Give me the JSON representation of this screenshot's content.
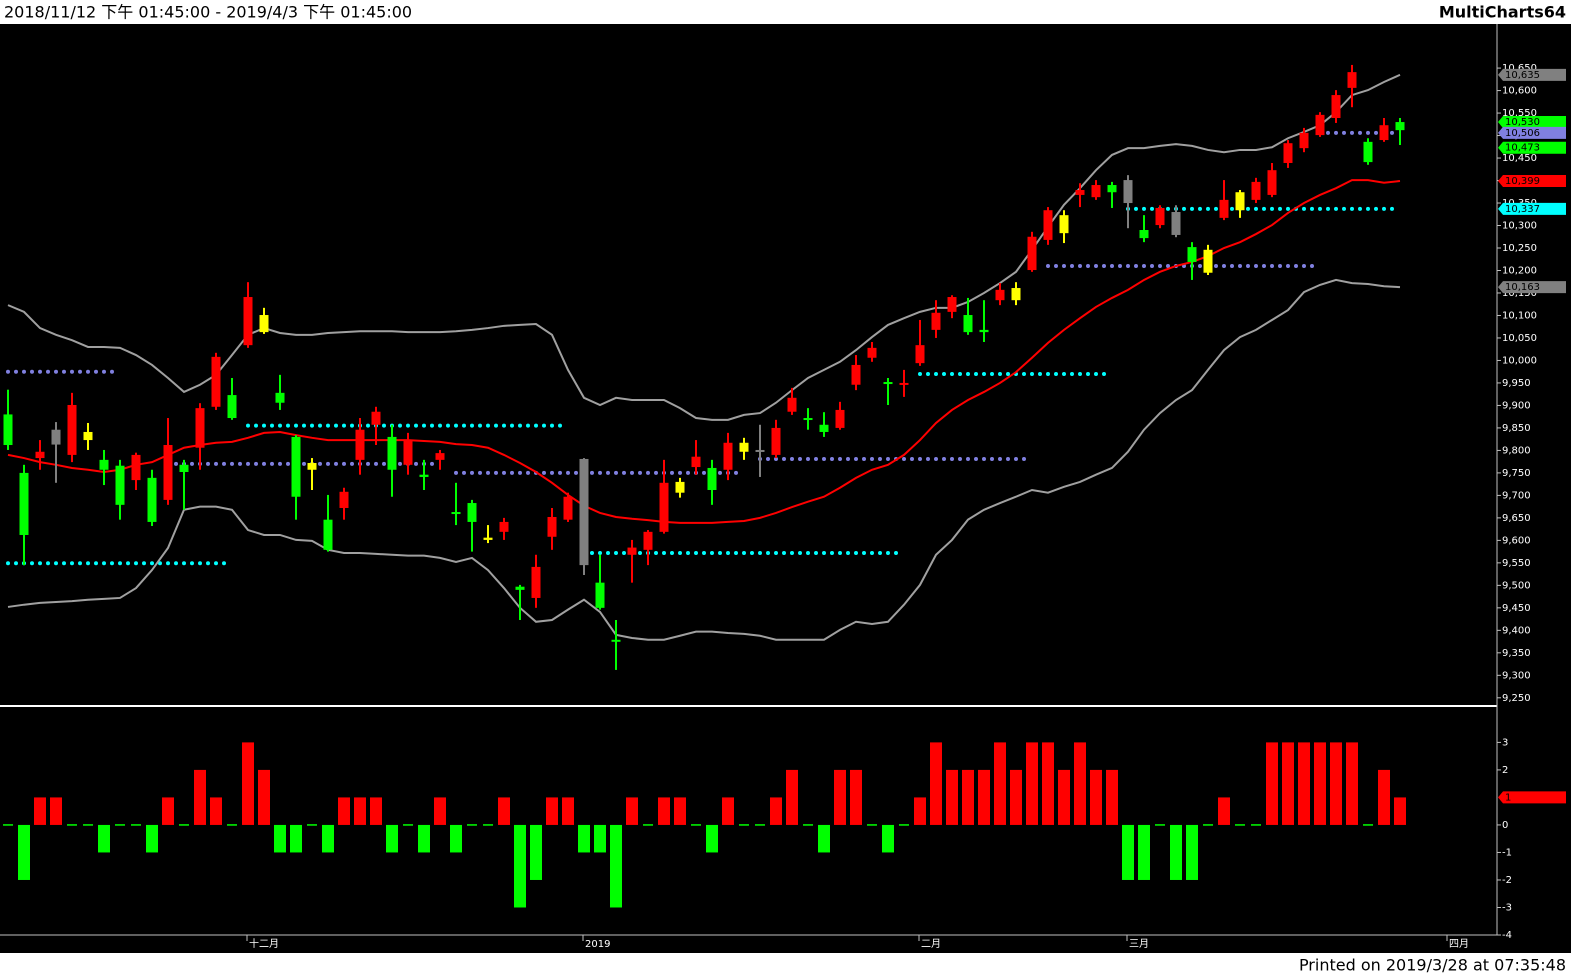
{
  "header": {
    "range": "2018/11/12 下午 01:45:00 - 2019/4/3 下午 01:45:00",
    "brand": "MultiCharts64"
  },
  "footer": "Printed on 2019/3/28 at 07:35:48",
  "chart_data": [
    {
      "type": "candlestick",
      "ylim": [
        9234,
        10748
      ],
      "yticks": [
        {
          "value": 9250,
          "label": "9,250"
        },
        {
          "value": 9300,
          "label": "9,300"
        },
        {
          "value": 9350,
          "label": "9,350"
        },
        {
          "value": 9400,
          "label": "9,400"
        },
        {
          "value": 9450,
          "label": "9,450"
        },
        {
          "value": 9500,
          "label": "9,500"
        },
        {
          "value": 9550,
          "label": "9,550"
        },
        {
          "value": 9600,
          "label": "9,600"
        },
        {
          "value": 9650,
          "label": "9,650"
        },
        {
          "value": 9700,
          "label": "9,700"
        },
        {
          "value": 9750,
          "label": "9,750"
        },
        {
          "value": 9800,
          "label": "9,800"
        },
        {
          "value": 9850,
          "label": "9,850"
        },
        {
          "value": 9900,
          "label": "9,900"
        },
        {
          "value": 9950,
          "label": "9,950"
        },
        {
          "value": 10000,
          "label": "10,000"
        },
        {
          "value": 10050,
          "label": "10,050"
        },
        {
          "value": 10100,
          "label": "10,100"
        },
        {
          "value": 10150,
          "label": "10,150"
        },
        {
          "value": 10200,
          "label": "10,200"
        },
        {
          "value": 10250,
          "label": "10,250"
        },
        {
          "value": 10300,
          "label": "10,300"
        },
        {
          "value": 10350,
          "label": "10,350"
        },
        {
          "value": 10400,
          "label": "10,400"
        },
        {
          "value": 10450,
          "label": "10,450"
        },
        {
          "value": 10500,
          "label": "10,500"
        },
        {
          "value": 10550,
          "label": "10,550"
        },
        {
          "value": 10600,
          "label": "10,600"
        },
        {
          "value": 10650,
          "label": "10,650"
        }
      ],
      "xticks": [
        {
          "value": 15,
          "label": "十二月"
        },
        {
          "value": 36,
          "label": "2019"
        },
        {
          "value": 57,
          "label": "二月"
        },
        {
          "value": 70,
          "label": "三月"
        },
        {
          "value": 90,
          "label": "四月"
        }
      ],
      "candles": {
        "open": [
          9880,
          9750,
          9783,
          9813,
          9790,
          9823,
          9779,
          9766,
          9734,
          9739,
          9690,
          9768,
          9806,
          9897,
          9923,
          10034,
          10063,
          9928,
          9830,
          9757,
          9646,
          9672,
          9779,
          9857,
          9830,
          9768,
          9746,
          9779,
          9663,
          9683,
          9601,
          9619,
          9497,
          9472,
          9608,
          9646,
          9545,
          9506,
          9379,
          9568,
          9579,
          9619,
          9706,
          9763,
          9761,
          9757,
          9797,
          9797,
          9790,
          9886,
          9872,
          9857,
          9850,
          9946,
          10006,
          9952,
          9946,
          9994,
          10068,
          10108,
          10101,
          10068,
          10134,
          10134,
          10201,
          10268,
          10283,
          10368,
          10363,
          10390,
          10350,
          10290,
          10301,
          10279,
          10252,
          10195,
          10317,
          10334,
          10357,
          10368,
          10439,
          10472,
          10501,
          10539,
          10606,
          10486,
          10490,
          10530
        ],
        "high": [
          9935,
          9768,
          9823,
          9863,
          9928,
          9861,
          9801,
          9779,
          9795,
          9757,
          9872,
          9779,
          9905,
          10017,
          9961,
          10174,
          10117,
          9968,
          9834,
          9783,
          9701,
          9717,
          9872,
          9897,
          9857,
          9839,
          9779,
          9801,
          9728,
          9690,
          9634,
          9650,
          9501,
          9568,
          9672,
          9706,
          9783,
          9568,
          9423,
          9601,
          9623,
          9779,
          9739,
          9823,
          9779,
          9839,
          9828,
          9857,
          9868,
          9939,
          9894,
          9885,
          9908,
          10012,
          10041,
          9961,
          9979,
          10090,
          10134,
          10145,
          10139,
          10134,
          10172,
          10174,
          10286,
          10341,
          10334,
          10394,
          10401,
          10397,
          10412,
          10323,
          10345,
          10345,
          10263,
          10257,
          10401,
          10379,
          10406,
          10439,
          10490,
          10517,
          10552,
          10601,
          10657,
          10494,
          10539,
          10539
        ],
        "low": [
          9801,
          9545,
          9757,
          9728,
          9774,
          9801,
          9723,
          9646,
          9712,
          9632,
          9679,
          9668,
          9757,
          9890,
          9868,
          10028,
          10059,
          9890,
          9646,
          9712,
          9575,
          9646,
          9746,
          9812,
          9697,
          9746,
          9712,
          9757,
          9634,
          9575,
          9594,
          9601,
          9423,
          9450,
          9579,
          9641,
          9523,
          9446,
          9312,
          9506,
          9545,
          9615,
          9695,
          9746,
          9679,
          9734,
          9779,
          9741,
          9783,
          9879,
          9846,
          9830,
          9846,
          9934,
          9997,
          9901,
          9919,
          9988,
          10050,
          10094,
          10057,
          10041,
          10123,
          10123,
          10197,
          10257,
          10261,
          10341,
          10357,
          10339,
          10294,
          10263,
          10294,
          10274,
          10179,
          10190,
          10312,
          10317,
          10350,
          10363,
          10428,
          10463,
          10497,
          10528,
          10563,
          10435,
          10486,
          10479
        ],
        "close": [
          9812,
          9612,
          9797,
          9846,
          9901,
          9841,
          9757,
          9679,
          9790,
          9641,
          9812,
          9752,
          9894,
          10008,
          9872,
          10141,
          10101,
          9906,
          9697,
          9772,
          9579,
          9708,
          9846,
          9886,
          9757,
          9823,
          9741,
          9794,
          9659,
          9641,
          9606,
          9641,
          9490,
          9541,
          9652,
          9697,
          9781,
          9450,
          9375,
          9584,
          9619,
          9728,
          9730,
          9786,
          9712,
          9817,
          9817,
          9801,
          9850,
          9917,
          9868,
          9841,
          9890,
          9990,
          10028,
          9948,
          9950,
          10034,
          10106,
          10141,
          10063,
          10063,
          10157,
          10161,
          10275,
          10334,
          10323,
          10379,
          10390,
          10374,
          10401,
          10272,
          10339,
          10330,
          10219,
          10246,
          10357,
          10374,
          10397,
          10423,
          10483,
          10506,
          10546,
          10590,
          10641,
          10441,
          10523,
          10512
        ],
        "colors": [
          "#00ff00",
          "#00ff00",
          "#ff0000",
          "#808080",
          "#ff0000",
          "#ffff00",
          "#00ff00",
          "#00ff00",
          "#ff0000",
          "#00ff00",
          "#ff0000",
          "#00ff00",
          "#ff0000",
          "#ff0000",
          "#00ff00",
          "#ff0000",
          "#ffff00",
          "#00ff00",
          "#00ff00",
          "#ffff00",
          "#00ff00",
          "#ff0000",
          "#ff0000",
          "#ff0000",
          "#00ff00",
          "#ff0000",
          "#00ff00",
          "#ff0000",
          "#00ff00",
          "#00ff00",
          "#ffff00",
          "#ff0000",
          "#00ff00",
          "#ff0000",
          "#ff0000",
          "#ff0000",
          "#808080",
          "#00ff00",
          "#00ff00",
          "#ff0000",
          "#ff0000",
          "#ff0000",
          "#ffff00",
          "#ff0000",
          "#00ff00",
          "#ff0000",
          "#ffff00",
          "#808080",
          "#ff0000",
          "#ff0000",
          "#00ff00",
          "#00ff00",
          "#ff0000",
          "#ff0000",
          "#ff0000",
          "#00ff00",
          "#ff0000",
          "#ff0000",
          "#ff0000",
          "#ff0000",
          "#00ff00",
          "#00ff00",
          "#ff0000",
          "#ffff00",
          "#ff0000",
          "#ff0000",
          "#ffff00",
          "#ff0000",
          "#ff0000",
          "#00ff00",
          "#808080",
          "#00ff00",
          "#ff0000",
          "#808080",
          "#00ff00",
          "#ffff00",
          "#ff0000",
          "#ffff00",
          "#ff0000",
          "#ff0000",
          "#ff0000",
          "#ff0000",
          "#ff0000",
          "#ff0000",
          "#ff0000",
          "#00ff00",
          "#ff0000",
          "#00ff00"
        ]
      },
      "bands": [
        {
          "color": "#a0a0a0",
          "values": [
            10123,
            10108,
            10072,
            10057,
            10045,
            10030,
            10030,
            10028,
            10012,
            9990,
            9961,
            9930,
            9946,
            9968,
            10012,
            10057,
            10072,
            10061,
            10057,
            10057,
            10061,
            10063,
            10065,
            10065,
            10065,
            10063,
            10063,
            10063,
            10065,
            10068,
            10072,
            10077,
            10079,
            10081,
            10057,
            9979,
            9917,
            9901,
            9917,
            9912,
            9912,
            9912,
            9894,
            9872,
            9868,
            9868,
            9879,
            9883,
            9906,
            9934,
            9961,
            9979,
            9997,
            10023,
            10052,
            10079,
            10094,
            10108,
            10117,
            10117,
            10130,
            10150,
            10172,
            10197,
            10246,
            10297,
            10346,
            10383,
            10423,
            10457,
            10472,
            10472,
            10477,
            10481,
            10477,
            10468,
            10463,
            10468,
            10468,
            10474,
            10494,
            10508,
            10523,
            10552,
            10590,
            10601,
            10619,
            10635
          ]
        },
        {
          "color": "#ff0000",
          "values": [
            9790,
            9783,
            9774,
            9768,
            9761,
            9757,
            9752,
            9757,
            9768,
            9774,
            9790,
            9806,
            9812,
            9817,
            9819,
            9828,
            9839,
            9841,
            9834,
            9828,
            9823,
            9823,
            9823,
            9823,
            9823,
            9823,
            9821,
            9819,
            9814,
            9812,
            9806,
            9790,
            9772,
            9752,
            9728,
            9701,
            9677,
            9661,
            9652,
            9648,
            9645,
            9641,
            9639,
            9639,
            9639,
            9641,
            9643,
            9650,
            9661,
            9674,
            9686,
            9697,
            9717,
            9739,
            9757,
            9768,
            9790,
            9823,
            9861,
            9890,
            9912,
            9930,
            9950,
            9974,
            10006,
            10039,
            10068,
            10094,
            10119,
            10139,
            10157,
            10179,
            10197,
            10210,
            10219,
            10232,
            10250,
            10263,
            10281,
            10301,
            10328,
            10350,
            10368,
            10383,
            10401,
            10401,
            10395,
            10399
          ]
        },
        {
          "color": "#a0a0a0",
          "values": [
            9452,
            9457,
            9461,
            9463,
            9465,
            9468,
            9470,
            9472,
            9494,
            9534,
            9583,
            9668,
            9675,
            9675,
            9668,
            9623,
            9612,
            9612,
            9601,
            9599,
            9579,
            9572,
            9572,
            9570,
            9568,
            9566,
            9566,
            9561,
            9552,
            9561,
            9534,
            9494,
            9450,
            9419,
            9423,
            9446,
            9468,
            9441,
            9390,
            9383,
            9379,
            9379,
            9388,
            9397,
            9397,
            9394,
            9392,
            9388,
            9379,
            9379,
            9379,
            9379,
            9401,
            9419,
            9414,
            9419,
            9457,
            9501,
            9568,
            9601,
            9646,
            9668,
            9683,
            9697,
            9712,
            9706,
            9719,
            9730,
            9746,
            9761,
            9797,
            9846,
            9883,
            9912,
            9934,
            9979,
            10023,
            10052,
            10068,
            10090,
            10112,
            10152,
            10168,
            10179,
            10172,
            10170,
            10165,
            10163
          ]
        }
      ],
      "levels": [
        {
          "value": 9975,
          "color": "#8080e0",
          "span": [
            0,
            7
          ]
        },
        {
          "value": 9549,
          "color": "#00ffff",
          "span": [
            0,
            14
          ]
        },
        {
          "value": 9855,
          "color": "#00ffff",
          "span": [
            15,
            35
          ]
        },
        {
          "value": 9770,
          "color": "#8080e0",
          "span": [
            10,
            27
          ]
        },
        {
          "value": 9750,
          "color": "#8080e0",
          "span": [
            28,
            46
          ]
        },
        {
          "value": 9572,
          "color": "#00ffff",
          "span": [
            36,
            56
          ]
        },
        {
          "value": 9781,
          "color": "#8080e0",
          "span": [
            47,
            64
          ]
        },
        {
          "value": 9970,
          "color": "#00ffff",
          "span": [
            57,
            69
          ]
        },
        {
          "value": 10210,
          "color": "#8080e0",
          "span": [
            65,
            82
          ]
        },
        {
          "value": 10337,
          "color": "#00ffff",
          "span": [
            70,
            87
          ]
        },
        {
          "value": 10506,
          "color": "#8080e0",
          "span": [
            82,
            87
          ]
        }
      ],
      "tags": [
        {
          "value": 10635,
          "label": "10,635",
          "color": "#808080"
        },
        {
          "value": 10530,
          "label": "10,530",
          "color": "#00ff00"
        },
        {
          "value": 10506,
          "label": "10,506",
          "color": "#8080e0"
        },
        {
          "value": 10473,
          "label": "10,473",
          "color": "#00ff00"
        },
        {
          "value": 10399,
          "label": "10,399",
          "color": "#ff0000"
        },
        {
          "value": 10337,
          "label": "10,337",
          "color": "#00ffff"
        },
        {
          "value": 10163,
          "label": "10,163",
          "color": "#808080"
        }
      ]
    },
    {
      "type": "bar",
      "ylim": [
        -4,
        4.25
      ],
      "yticks": [
        3,
        2,
        0,
        -1,
        -2,
        -3,
        -4
      ],
      "values": [
        0,
        -2,
        1,
        1,
        0,
        0,
        -1,
        0,
        0,
        -1,
        1,
        0,
        2,
        1,
        0,
        3,
        2,
        -1,
        -1,
        0,
        -1,
        1,
        1,
        1,
        -1,
        0,
        -1,
        1,
        -1,
        0,
        0,
        1,
        -3,
        -2,
        1,
        1,
        -1,
        -1,
        -3,
        1,
        0,
        1,
        1,
        0,
        -1,
        1,
        0,
        0,
        1,
        2,
        0,
        -1,
        2,
        2,
        0,
        -1,
        0,
        1,
        3,
        2,
        2,
        2,
        3,
        2,
        3,
        3,
        2,
        3,
        2,
        2,
        -2,
        -2,
        0,
        -2,
        -2,
        0,
        1,
        0,
        0,
        3,
        3,
        3,
        3,
        3,
        3,
        0,
        2,
        1
      ],
      "positive_color": "#ff0000",
      "negative_color": "#00ff00",
      "tags": [
        {
          "value": 1,
          "label": "1",
          "color": "#ff0000"
        }
      ]
    }
  ]
}
